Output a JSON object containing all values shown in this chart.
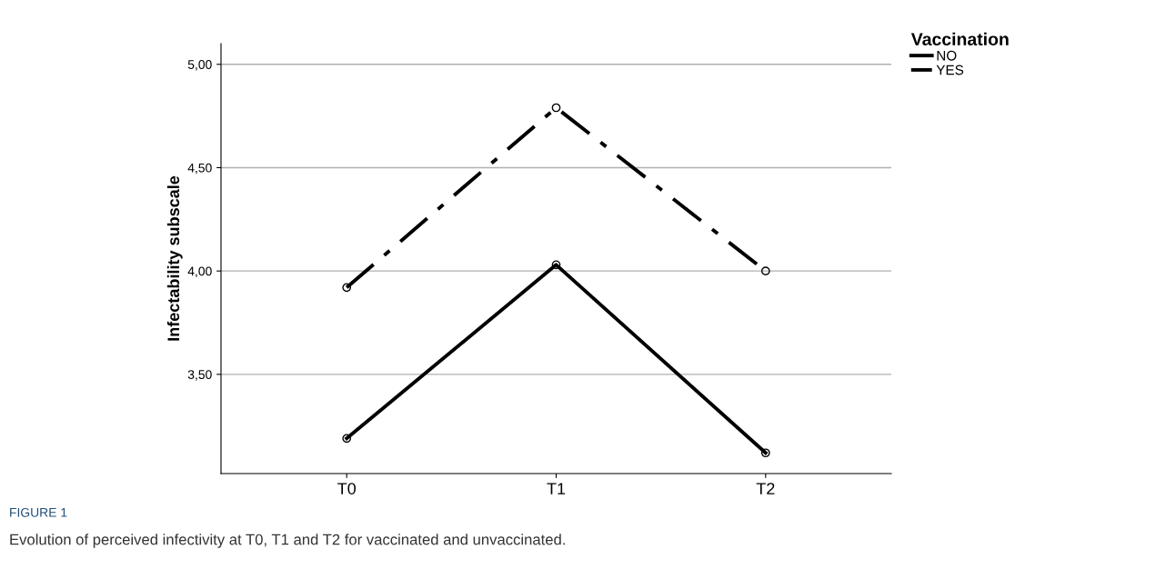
{
  "chart_data": {
    "type": "line",
    "ylabel": "Infectability subscale",
    "categories": [
      "T0",
      "T1",
      "T2"
    ],
    "series": [
      {
        "name": "NO",
        "color": "#000000",
        "line_style": "solid",
        "values": [
          3.19,
          4.03,
          3.12
        ]
      },
      {
        "name": "YES",
        "color": "#000000",
        "line_style": "dashdot",
        "values": [
          3.92,
          4.79,
          4.0
        ]
      }
    ],
    "ylim": [
      3.02,
      5.1
    ],
    "yticks": [
      {
        "value": 3.5,
        "label": "3,50"
      },
      {
        "value": 4.0,
        "label": "4,00"
      },
      {
        "value": 4.5,
        "label": "4,50"
      },
      {
        "value": 5.0,
        "label": "5,00"
      }
    ],
    "grid": "y",
    "legend": "top right",
    "legend_title": "Vaccination",
    "marker": "circle",
    "annotations": [
      "FIGURE 1",
      "Evolution of perceived infectivity at T0, T1 and T2 for vaccinated and unvaccinated."
    ]
  }
}
